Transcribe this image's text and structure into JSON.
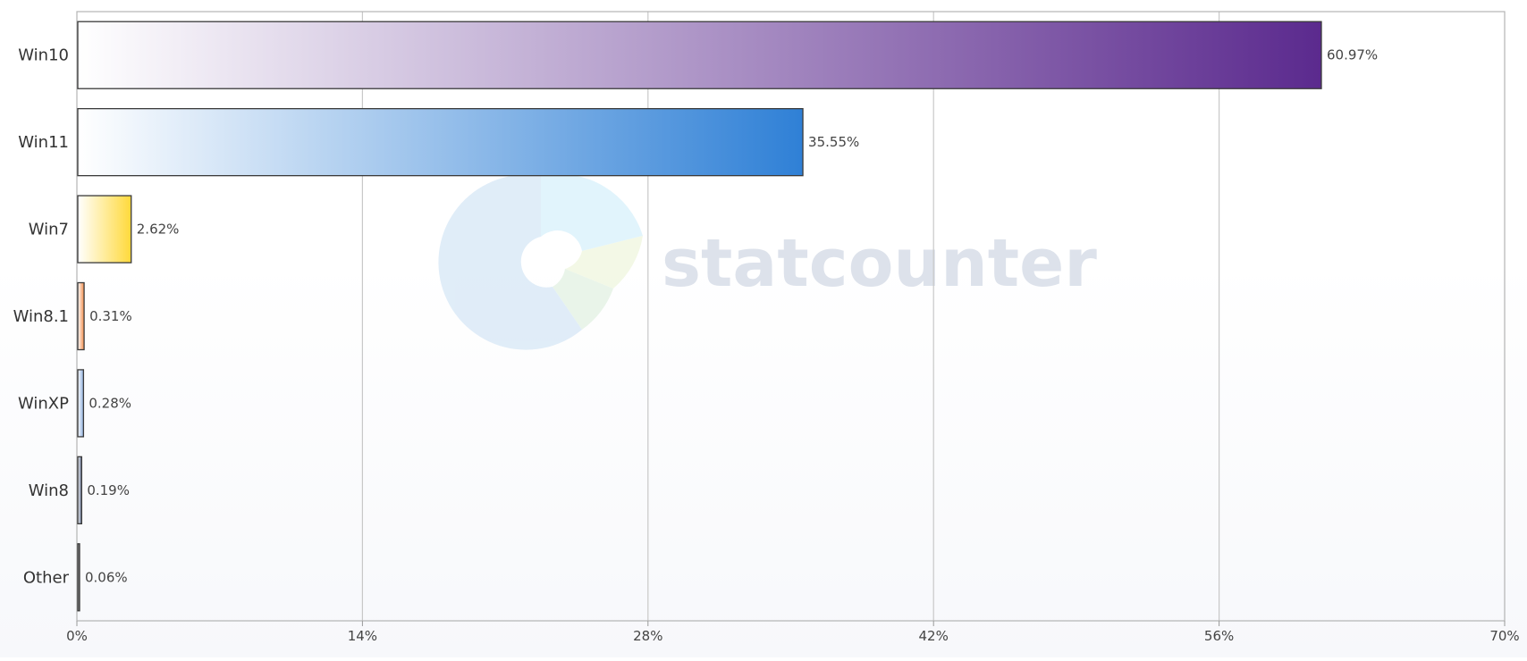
{
  "watermark": {
    "text": "statcounter"
  },
  "chart_data": {
    "type": "bar",
    "orientation": "horizontal",
    "categories": [
      "Win10",
      "Win11",
      "Win7",
      "Win8.1",
      "WinXP",
      "Win8",
      "Other"
    ],
    "values": [
      60.97,
      35.55,
      2.62,
      0.31,
      0.28,
      0.19,
      0.06
    ],
    "value_labels": [
      "60.97%",
      "35.55%",
      "2.62%",
      "0.31%",
      "0.28%",
      "0.19%",
      "0.06%"
    ],
    "colors": [
      "#5b2a8e",
      "#2f80d6",
      "#ffd93a",
      "#f28c4a",
      "#8fb1e0",
      "#5a6a8c",
      "#222222"
    ],
    "xlim": [
      0,
      70
    ],
    "xticks": [
      0,
      14,
      28,
      42,
      56,
      70
    ],
    "xtick_labels": [
      "0%",
      "14%",
      "28%",
      "42%",
      "56%",
      "70%"
    ],
    "title": "",
    "xlabel": "",
    "ylabel": "",
    "grid": true
  }
}
